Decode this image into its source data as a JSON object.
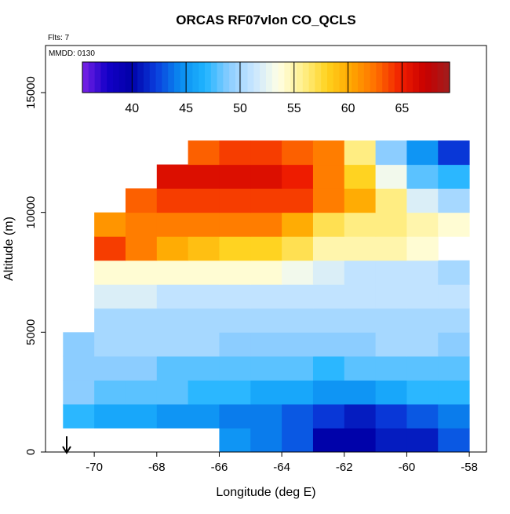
{
  "chart_data": {
    "type": "heatmap",
    "title": "ORCAS RF07vlon CO_QCLS",
    "annotations": [
      "Flts: 7",
      "MMDD: 0130"
    ],
    "x_label": "Longitude (deg E)",
    "y_label": "Altitude (m)",
    "xlim": [
      -71.56,
      -57.45
    ],
    "xticks": [
      -70,
      -68,
      -66,
      -64,
      -62,
      -60,
      -58
    ],
    "ylim": [
      0,
      16965
    ],
    "yticks": [
      0,
      5000,
      10000,
      15000
    ],
    "xbins": [
      -71,
      -70,
      -69,
      -68,
      -67,
      -66,
      -65,
      -64,
      -63,
      -62,
      -61,
      -60,
      -59,
      -58
    ],
    "ybins": [
      0,
      1000,
      2000,
      3000,
      4000,
      5000,
      6000,
      7000,
      8000,
      9000,
      10000,
      11000,
      12000,
      13000
    ],
    "z": [
      [
        null,
        null,
        null,
        null,
        null,
        45,
        44,
        43,
        40,
        40,
        41,
        41,
        43
      ],
      [
        47,
        46,
        46,
        45,
        45,
        44,
        44,
        43,
        42,
        41,
        42,
        43,
        44
      ],
      [
        49,
        48,
        48,
        48,
        47,
        47,
        46,
        46,
        45,
        45,
        46,
        47,
        47
      ],
      [
        49,
        49,
        49,
        48,
        48,
        48,
        48,
        48,
        47,
        48,
        48,
        48,
        48
      ],
      [
        49,
        50,
        50,
        50,
        50,
        49,
        49,
        49,
        49,
        49,
        50,
        50,
        49
      ],
      [
        null,
        50,
        50,
        50,
        50,
        50,
        50,
        50,
        50,
        50,
        50,
        50,
        50
      ],
      [
        null,
        52,
        52,
        51,
        51,
        51,
        51,
        51,
        51,
        51,
        51,
        51,
        51
      ],
      [
        null,
        54,
        54,
        54,
        54,
        54,
        54,
        53,
        52,
        51,
        51,
        51,
        50
      ],
      [
        null,
        64,
        62,
        60,
        59,
        58,
        58,
        57,
        55,
        55,
        55,
        54,
        null
      ],
      [
        null,
        61,
        62,
        62,
        62,
        62,
        62,
        60,
        57,
        56,
        56,
        55,
        54
      ],
      [
        null,
        null,
        63,
        64,
        64,
        64,
        64,
        64,
        62,
        60,
        56,
        52,
        50
      ],
      [
        null,
        null,
        null,
        66,
        66,
        66,
        66,
        65,
        62,
        58,
        53,
        48,
        47
      ],
      [
        null,
        null,
        null,
        null,
        63,
        64,
        64,
        63,
        62,
        56,
        49,
        45,
        42
      ]
    ],
    "zlim": [
      35.4,
      69.4
    ],
    "zticks": [
      40,
      45,
      50,
      55,
      60,
      65
    ],
    "colormap": [
      "#7b22e6",
      "#1400c8",
      "#0000a8",
      "#0a3cdc",
      "#0a8cf0",
      "#1eb4ff",
      "#8ccdff",
      "#c8e6ff",
      "#ffffe6",
      "#fff08c",
      "#ffd21e",
      "#ffa500",
      "#ff6e00",
      "#f01e00",
      "#c80000",
      "#a01e1e"
    ]
  }
}
